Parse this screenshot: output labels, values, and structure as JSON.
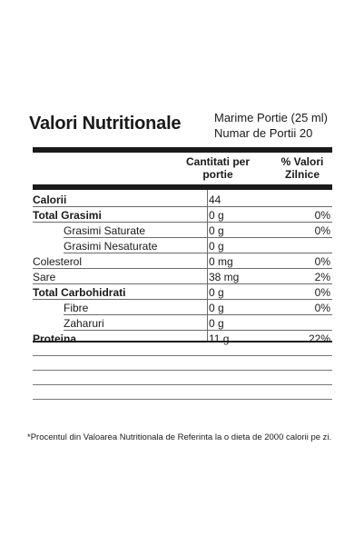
{
  "title": "Valori Nutritionale",
  "serving": {
    "size": "Marime Portie (25 ml)",
    "count": "Numar de Portii 20"
  },
  "columns": {
    "quantity": "Cantitati per portie",
    "daily_value": "% Valori Zilnice"
  },
  "rows": [
    {
      "label": "Calorii",
      "qty": "44",
      "pct": "",
      "bold": true,
      "sub": false
    },
    {
      "label": "Total Grasimi",
      "qty": "0 g",
      "pct": "0%",
      "bold": true,
      "sub": false
    },
    {
      "label": "Grasimi Saturate",
      "qty": "0 g",
      "pct": "0%",
      "bold": false,
      "sub": true
    },
    {
      "label": "Grasimi Nesaturate",
      "qty": "0 g",
      "pct": "",
      "bold": false,
      "sub": true
    },
    {
      "label": "Colesterol",
      "qty": "0 mg",
      "pct": "0%",
      "bold": false,
      "sub": false
    },
    {
      "label": "Sare",
      "qty": "38 mg",
      "pct": "2%",
      "bold": false,
      "sub": false
    },
    {
      "label": "Total Carbohidrati",
      "qty": "0 g",
      "pct": "0%",
      "bold": true,
      "sub": false
    },
    {
      "label": "Fibre",
      "qty": "0 g",
      "pct": "0%",
      "bold": false,
      "sub": true
    },
    {
      "label": "Zaharuri",
      "qty": "0 g",
      "pct": "",
      "bold": false,
      "sub": true
    },
    {
      "label": "Proteina",
      "qty": "11 g",
      "pct": "22%",
      "bold": true,
      "sub": false
    }
  ],
  "footnote": "*Procentul din Valoarea Nutritionala de Referinta la o dieta de 2000 calorii pe zi."
}
